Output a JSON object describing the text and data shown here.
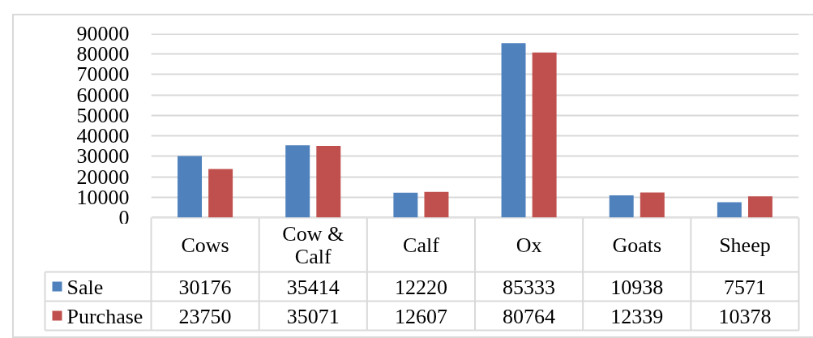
{
  "chart_data": {
    "type": "bar",
    "categories": [
      "Cows",
      "Cow & Calf",
      "Calf",
      "Ox",
      "Goats",
      "Sheep"
    ],
    "series": [
      {
        "name": "Sale",
        "color": "#4f81bd",
        "values": [
          30176,
          35414,
          12220,
          85333,
          10938,
          7571
        ]
      },
      {
        "name": "Purchase",
        "color": "#c0504d",
        "values": [
          23750,
          35071,
          12607,
          80764,
          12339,
          10378
        ]
      }
    ],
    "ylim": [
      0,
      90000
    ],
    "yticks": [
      0,
      10000,
      20000,
      30000,
      40000,
      50000,
      60000,
      70000,
      80000,
      90000
    ],
    "grid": "y",
    "legend": "bottom left",
    "data_labels": true
  }
}
